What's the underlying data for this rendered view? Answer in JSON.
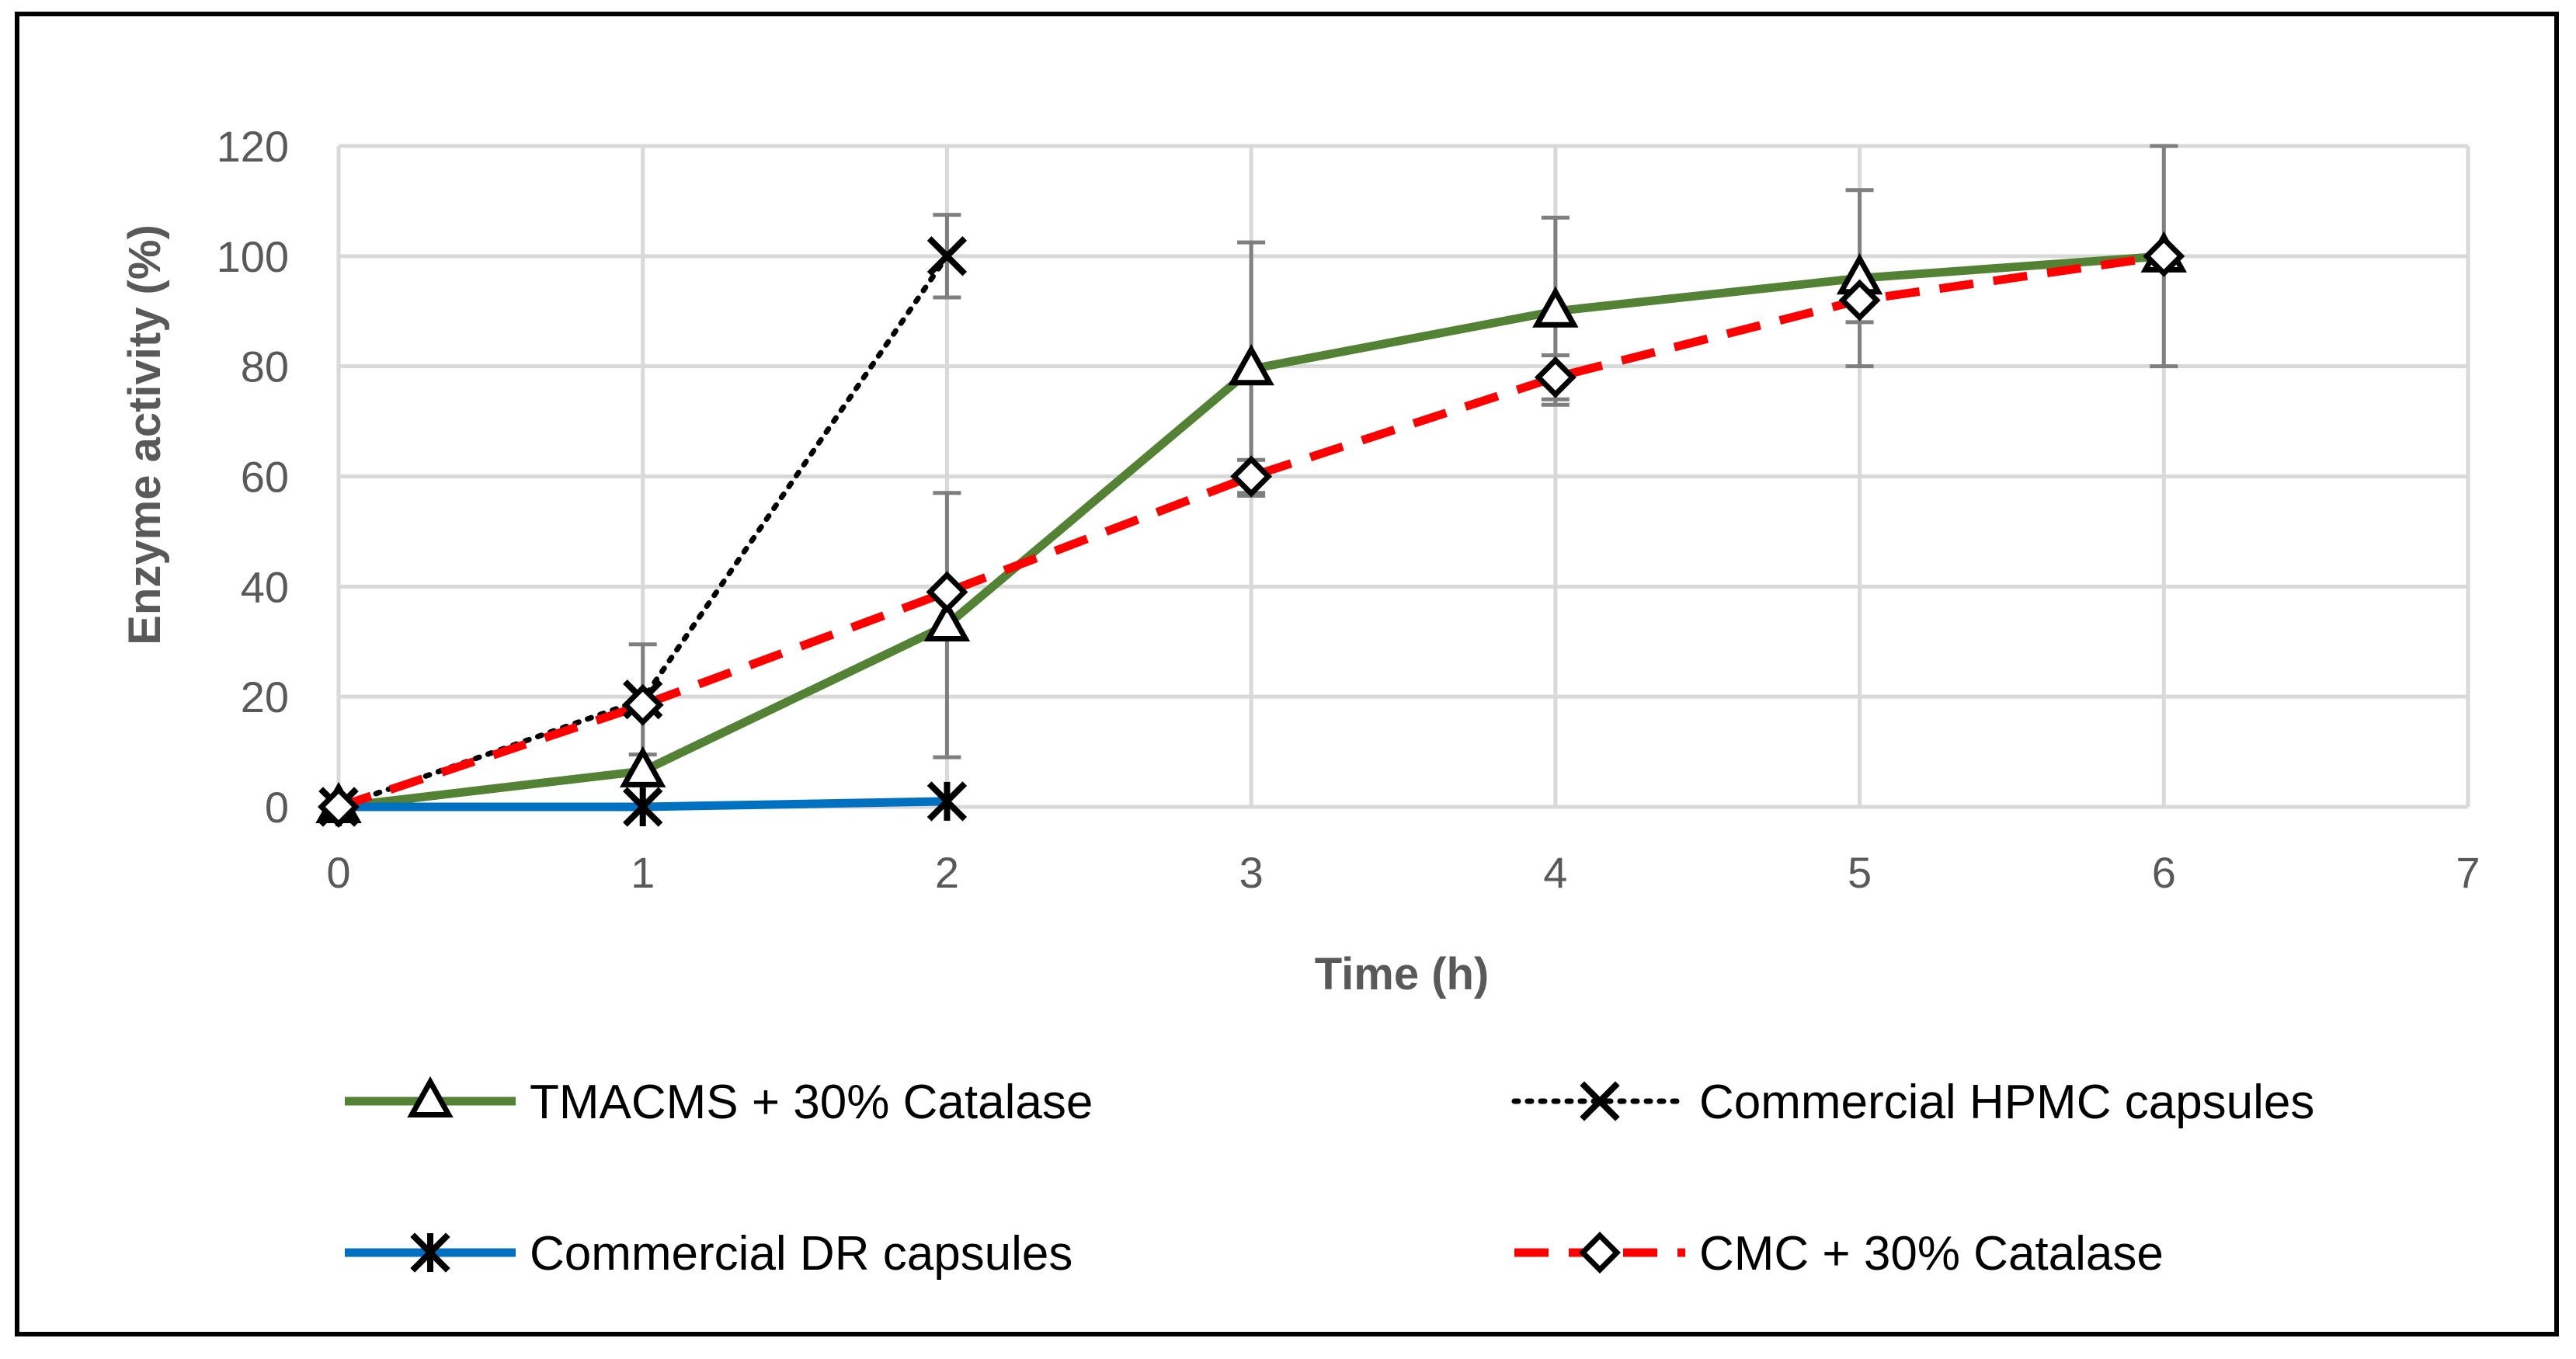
{
  "chart_data": {
    "type": "line",
    "title": "",
    "xlabel": "Time (h)",
    "ylabel": "Enzyme activity (%)",
    "xlim": [
      0,
      7
    ],
    "ylim": [
      0,
      120
    ],
    "x_ticks": [
      0,
      1,
      2,
      3,
      4,
      5,
      6,
      7
    ],
    "y_ticks": [
      0,
      20,
      40,
      60,
      80,
      100,
      120
    ],
    "grid": true,
    "legend_position": "bottom",
    "series": [
      {
        "name": "TMACMS + 30% Catalase",
        "color": "#548235",
        "line_style": "solid",
        "marker": "triangle",
        "x": [
          0,
          1,
          2,
          3,
          4,
          5,
          6
        ],
        "y": [
          0,
          6.5,
          33,
          79.5,
          90,
          96,
          100
        ],
        "error": [
          0,
          0,
          24,
          23,
          17,
          16,
          20
        ]
      },
      {
        "name": "Commercial HPMC capsules",
        "color": "#000000",
        "line_style": "dotted",
        "marker": "x",
        "x": [
          0,
          1,
          2
        ],
        "y": [
          0,
          19.5,
          100
        ],
        "error": [
          0,
          10,
          7.5
        ]
      },
      {
        "name": "Commercial DR capsules",
        "color": "#0070C0",
        "line_style": "solid",
        "marker": "star",
        "x": [
          0,
          1,
          2
        ],
        "y": [
          0,
          0,
          1
        ],
        "error": [
          0,
          0,
          0
        ]
      },
      {
        "name": "CMC + 30% Catalase",
        "color": "#FF0000",
        "line_style": "dashed",
        "marker": "diamond",
        "x": [
          0,
          1,
          2,
          3,
          4,
          5,
          6
        ],
        "y": [
          0,
          18.5,
          39,
          60,
          78,
          92,
          100
        ],
        "error": [
          0,
          0,
          0,
          3,
          4,
          4,
          0
        ]
      }
    ]
  }
}
